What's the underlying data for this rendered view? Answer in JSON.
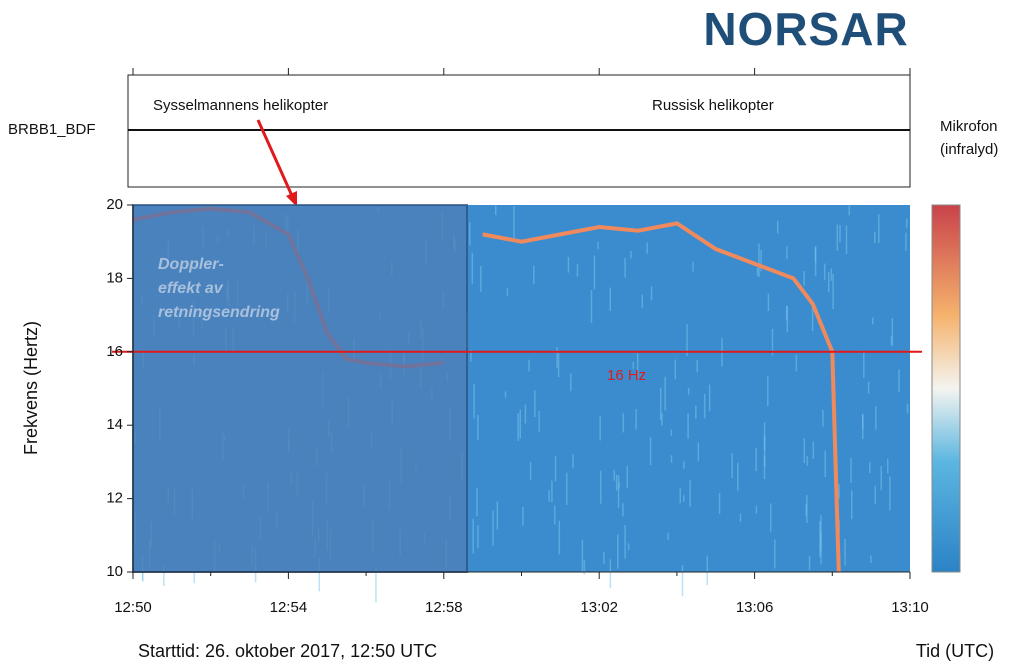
{
  "logo": "NORSAR",
  "chart_data": {
    "type": "spectrogram",
    "trace_label": "BRBB1_BDF",
    "annotations": [
      "Sysselmannens helikopter",
      "Russisk helikopter"
    ],
    "side_label": [
      "Mikrofon",
      "(infralyd)"
    ],
    "overlay_text": [
      "Doppler-",
      "effekt av",
      "retningsendring"
    ],
    "ylabel": "Frekvens (Hertz)",
    "xlabel": "Tid (UTC)",
    "footer": "Starttid: 26. oktober 2017, 12:50 UTC",
    "ylim": [
      10,
      20
    ],
    "yticks": [
      10,
      12,
      14,
      16,
      18,
      20
    ],
    "xlim": [
      "12:50",
      "13:10"
    ],
    "xticks": [
      "12:50",
      "12:54",
      "12:58",
      "13:02",
      "13:06",
      "13:10"
    ],
    "hline": {
      "value": 16,
      "label": "16 Hz",
      "color": "#e0191c"
    },
    "series": [
      {
        "color": "#d9534f",
        "x": [
          "12:50",
          "12:51",
          "12:52",
          "12:53",
          "12:54",
          "12:54:30",
          "12:55",
          "12:55:30",
          "12:56",
          "12:57",
          "12:58"
        ],
        "values": [
          19.6,
          19.8,
          19.9,
          19.8,
          19.2,
          18,
          16.5,
          15.8,
          15.7,
          15.6,
          15.7
        ]
      },
      {
        "color": "#f08a5d",
        "x": [
          "12:59",
          "13:00",
          "13:01",
          "13:02",
          "13:03",
          "13:04",
          "13:05",
          "13:06",
          "13:07",
          "13:07:30",
          "13:08",
          "13:08:10"
        ],
        "values": [
          19.2,
          19.0,
          19.2,
          19.4,
          19.3,
          19.5,
          18.8,
          18.4,
          18.0,
          17.3,
          16.0,
          10
        ]
      }
    ]
  }
}
